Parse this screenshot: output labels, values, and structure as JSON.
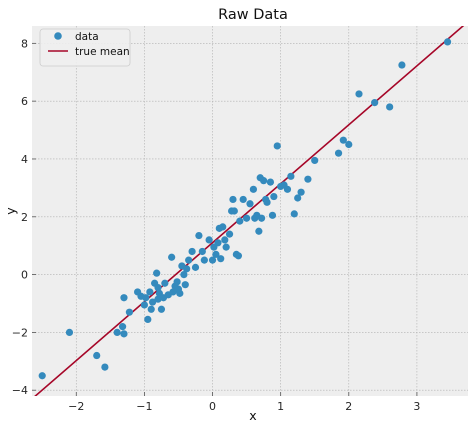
{
  "chart_data": {
    "type": "scatter",
    "title": "Raw Data",
    "xlabel": "x",
    "ylabel": "y",
    "xlim": [
      -2.65,
      3.75
    ],
    "ylim": [
      -4.2,
      8.6
    ],
    "xticks": [
      -2,
      -1,
      0,
      1,
      2,
      3
    ],
    "yticks": [
      -4,
      -2,
      0,
      2,
      4,
      6,
      8
    ],
    "xtick_labels": [
      "−2",
      "−1",
      "0",
      "1",
      "2",
      "3"
    ],
    "ytick_labels": [
      "−4",
      "−2",
      "0",
      "2",
      "4",
      "6",
      "8"
    ],
    "grid": true,
    "legend_position": "top-left",
    "background_color": "#eeeeee",
    "series": [
      {
        "name": "data",
        "kind": "scatter",
        "color": "#348abd",
        "x": [
          -2.5,
          -2.1,
          -1.7,
          -1.58,
          -1.4,
          -1.32,
          -1.3,
          -1.3,
          -1.22,
          -1.1,
          -1.05,
          -1.0,
          -0.98,
          -0.95,
          -0.92,
          -0.9,
          -0.88,
          -0.85,
          -0.82,
          -0.8,
          -0.8,
          -0.78,
          -0.75,
          -0.72,
          -0.7,
          -0.65,
          -0.6,
          -0.58,
          -0.55,
          -0.52,
          -0.5,
          -0.48,
          -0.45,
          -0.42,
          -0.4,
          -0.38,
          -0.35,
          -0.3,
          -0.25,
          -0.2,
          -0.15,
          -0.12,
          -0.05,
          0.0,
          0.02,
          0.05,
          0.08,
          0.1,
          0.12,
          0.15,
          0.18,
          0.2,
          0.25,
          0.28,
          0.3,
          0.32,
          0.35,
          0.38,
          0.4,
          0.45,
          0.5,
          0.55,
          0.6,
          0.62,
          0.65,
          0.68,
          0.7,
          0.72,
          0.75,
          0.78,
          0.8,
          0.85,
          0.88,
          0.9,
          0.95,
          1.0,
          1.05,
          1.1,
          1.15,
          1.2,
          1.25,
          1.3,
          1.4,
          1.5,
          1.85,
          1.92,
          2.0,
          2.15,
          2.38,
          2.6,
          2.78,
          3.45
        ],
        "y": [
          -3.5,
          -2.0,
          -2.8,
          -3.2,
          -2.0,
          -1.8,
          -2.05,
          -0.8,
          -1.3,
          -0.6,
          -0.75,
          -1.05,
          -0.8,
          -1.55,
          -0.6,
          -1.2,
          -0.95,
          -0.3,
          0.05,
          -0.85,
          -0.45,
          -0.65,
          -1.2,
          -0.8,
          -0.3,
          -0.7,
          0.6,
          -0.6,
          -0.4,
          -0.25,
          -0.5,
          -0.65,
          0.3,
          0.0,
          -0.35,
          0.2,
          0.5,
          0.8,
          0.25,
          1.35,
          0.8,
          0.5,
          1.2,
          0.5,
          0.95,
          0.7,
          1.1,
          1.6,
          0.55,
          1.65,
          1.2,
          0.95,
          1.4,
          2.2,
          2.6,
          2.2,
          0.7,
          0.65,
          1.85,
          2.6,
          1.95,
          2.45,
          2.95,
          1.95,
          2.05,
          1.5,
          3.35,
          1.95,
          3.25,
          2.6,
          2.5,
          3.2,
          2.05,
          2.7,
          4.45,
          3.05,
          3.1,
          2.95,
          3.4,
          2.1,
          2.65,
          2.85,
          3.3,
          3.95,
          4.2,
          4.65,
          4.5,
          6.25,
          5.95,
          5.8,
          7.25,
          8.05
        ]
      },
      {
        "name": "true mean",
        "kind": "line",
        "color": "#a60628",
        "x": [
          -2.65,
          3.75
        ],
        "y": [
          -4.3,
          8.75
        ]
      }
    ]
  }
}
